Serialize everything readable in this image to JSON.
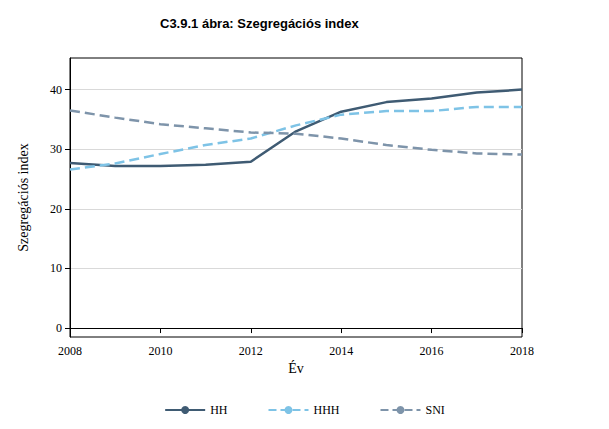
{
  "chart_data": {
    "type": "line",
    "title": "C3.9.1 ábra: Szegregációs index",
    "x_label": "Év",
    "y_label": "Szegregációs index",
    "x": [
      2008,
      2009,
      2010,
      2011,
      2012,
      2013,
      2014,
      2015,
      2016,
      2017,
      2018
    ],
    "series": [
      {
        "name": "HH",
        "color": "#3f5b73",
        "line_style": "solid",
        "values": [
          27.7,
          27.2,
          27.2,
          27.4,
          27.9,
          33.0,
          36.3,
          37.9,
          38.5,
          39.5,
          40.0
        ]
      },
      {
        "name": "HHH",
        "color": "#7ec3e6",
        "line_style": "dashed",
        "values": [
          26.6,
          27.6,
          29.2,
          30.7,
          31.8,
          34.0,
          35.8,
          36.4,
          36.4,
          37.1,
          37.1
        ]
      },
      {
        "name": "SNI",
        "color": "#7e94aa",
        "line_style": "dashed",
        "values": [
          36.5,
          35.3,
          34.2,
          33.5,
          32.8,
          32.6,
          31.8,
          30.7,
          29.9,
          29.3,
          29.1
        ]
      }
    ],
    "xlim": [
      2008,
      2018
    ],
    "xticks": [
      2008,
      2010,
      2012,
      2014,
      2016,
      2018
    ],
    "ylim": [
      -1.5,
      45.3
    ],
    "yticks": [
      0,
      10,
      20,
      30,
      40
    ],
    "grid": true,
    "legend": "bottom"
  }
}
